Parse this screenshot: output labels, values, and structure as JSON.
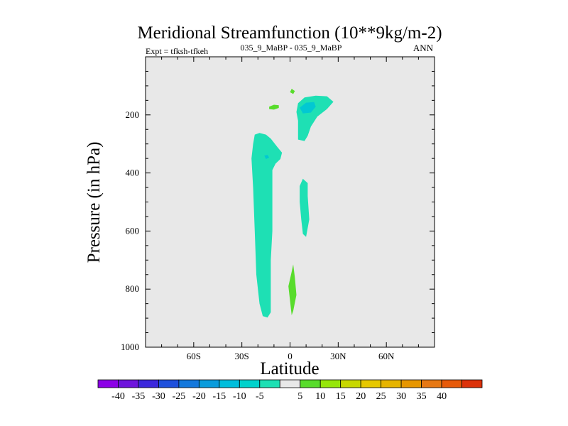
{
  "chart_data": {
    "type": "contour",
    "title": "Meridional Streamfunction (10**9kg/m-2)",
    "subtitle_left": "Expt = tfksh-tfkeh",
    "subtitle_center": "035_9_MaBP - 035_9_MaBP",
    "subtitle_right": "ANN",
    "xlabel": "Latitude",
    "ylabel": "Pressure (in hPa)",
    "xlim": [
      -90,
      90
    ],
    "ylim": [
      1000,
      0
    ],
    "x_ticks": [
      {
        "value": -60,
        "label": "60S"
      },
      {
        "value": -30,
        "label": "30S"
      },
      {
        "value": 0,
        "label": "0"
      },
      {
        "value": 30,
        "label": "30N"
      },
      {
        "value": 60,
        "label": "60N"
      }
    ],
    "y_ticks": [
      {
        "value": 200,
        "label": "200"
      },
      {
        "value": 400,
        "label": "400"
      },
      {
        "value": 600,
        "label": "600"
      },
      {
        "value": 800,
        "label": "800"
      },
      {
        "value": 1000,
        "label": "1000"
      }
    ],
    "background_color": "#e8e8e8",
    "regions": [
      {
        "level": -10,
        "color": "#1ee0b4",
        "points": [
          [
            -22,
            268
          ],
          [
            -19,
            262
          ],
          [
            -15,
            268
          ],
          [
            -12,
            282
          ],
          [
            -8,
            310
          ],
          [
            -5,
            330
          ],
          [
            -6,
            352
          ],
          [
            -9,
            368
          ],
          [
            -11,
            390
          ],
          [
            -11,
            430
          ],
          [
            -11,
            500
          ],
          [
            -11,
            600
          ],
          [
            -12,
            700
          ],
          [
            -12,
            800
          ],
          [
            -12,
            880
          ],
          [
            -14,
            898
          ],
          [
            -17,
            893
          ],
          [
            -19,
            850
          ],
          [
            -21,
            750
          ],
          [
            -22,
            600
          ],
          [
            -23,
            450
          ],
          [
            -24,
            350
          ],
          [
            -23,
            300
          ]
        ]
      },
      {
        "level": -10,
        "color": "#1ee0b4",
        "points": [
          [
            5,
            220
          ],
          [
            4,
            190
          ],
          [
            5,
            160
          ],
          [
            9,
            140
          ],
          [
            16,
            134
          ],
          [
            23,
            136
          ],
          [
            27,
            155
          ],
          [
            23,
            180
          ],
          [
            17,
            206
          ],
          [
            13,
            240
          ],
          [
            11,
            272
          ],
          [
            9,
            290
          ],
          [
            5,
            285
          ]
        ]
      },
      {
        "level": -10,
        "color": "#1ee0b4",
        "points": [
          [
            6,
            445
          ],
          [
            8,
            420
          ],
          [
            11,
            435
          ],
          [
            11,
            480
          ],
          [
            12,
            560
          ],
          [
            10,
            620
          ],
          [
            8,
            610
          ],
          [
            7,
            560
          ],
          [
            6,
            500
          ]
        ]
      },
      {
        "level": -15,
        "color": "#02c8d2",
        "points": [
          [
            6,
            175
          ],
          [
            10,
            158
          ],
          [
            15,
            156
          ],
          [
            16,
            172
          ],
          [
            13,
            192
          ],
          [
            8,
            195
          ]
        ]
      },
      {
        "level": -15,
        "color": "#02c8d2",
        "points": [
          [
            -16,
            340
          ],
          [
            -14,
            338
          ],
          [
            -13,
            347
          ],
          [
            -15,
            352
          ]
        ]
      },
      {
        "level": 5,
        "color": "#58dc2c",
        "points": [
          [
            -13,
            172
          ],
          [
            -10,
            165
          ],
          [
            -7,
            167
          ],
          [
            -7,
            176
          ],
          [
            -10,
            182
          ],
          [
            -13,
            180
          ]
        ]
      },
      {
        "level": 5,
        "color": "#58dc2c",
        "points": [
          [
            0,
            122
          ],
          [
            1,
            110
          ],
          [
            3,
            118
          ],
          [
            2,
            128
          ]
        ]
      },
      {
        "level": 5,
        "color": "#58dc2c",
        "points": [
          [
            1,
            740
          ],
          [
            2,
            715
          ],
          [
            3,
            760
          ],
          [
            4,
            820
          ],
          [
            2,
            875
          ],
          [
            1,
            890
          ],
          [
            0,
            840
          ],
          [
            -1,
            790
          ]
        ]
      }
    ],
    "colorbar": {
      "colors": [
        "#8c00e6",
        "#6e14dc",
        "#3c28dc",
        "#1e50dc",
        "#1478dc",
        "#0a9cdc",
        "#00bedc",
        "#00d2cc",
        "#1ee0b4",
        "#e8e8e8",
        "#58dc2c",
        "#96e60a",
        "#c8d800",
        "#e6c800",
        "#e6b400",
        "#e69600",
        "#e67814",
        "#e65a0a",
        "#dc320a"
      ],
      "labels": [
        "-40",
        "-35",
        "-30",
        "-25",
        "-20",
        "-15",
        "-10",
        "-5",
        "5",
        "10",
        "15",
        "20",
        "25",
        "30",
        "35",
        "40"
      ]
    }
  }
}
